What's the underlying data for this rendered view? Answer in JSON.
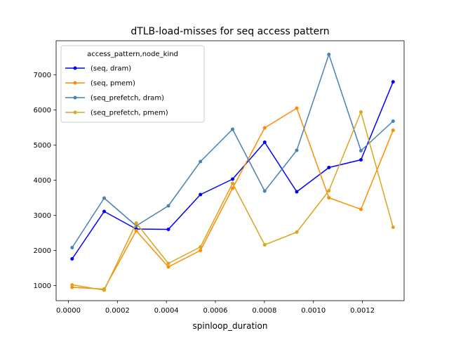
{
  "chart_data": {
    "type": "line",
    "title": "dTLB-load-misses for seq access pattern",
    "xlabel": "spinloop_duration",
    "ylabel": "",
    "xlim": [
      -5e-05,
      0.00137
    ],
    "ylim": [
      570,
      7970
    ],
    "xticks": [
      0.0,
      0.0002,
      0.0004,
      0.0006,
      0.0008,
      0.001,
      0.0012
    ],
    "xtick_labels": [
      "0.0000",
      "0.0002",
      "0.0004",
      "0.0006",
      "0.0008",
      "0.0010",
      "0.0012"
    ],
    "yticks": [
      1000,
      2000,
      3000,
      4000,
      5000,
      6000,
      7000
    ],
    "ytick_labels": [
      "1000",
      "2000",
      "3000",
      "4000",
      "5000",
      "6000",
      "7000"
    ],
    "x": [
      1.52e-05,
      0.000146,
      0.000277,
      0.000408,
      0.000539,
      0.00067,
      0.000801,
      0.000932,
      0.001063,
      0.001194,
      0.001325
    ],
    "grid": false,
    "legend": {
      "title": "access_pattern,node_kind",
      "placement": "top-left"
    },
    "series": [
      {
        "name": "(seq, dram)",
        "color": "#0000ff",
        "values": [
          1760,
          3110,
          2610,
          2600,
          3590,
          4030,
          5080,
          3670,
          4360,
          4580,
          6800
        ]
      },
      {
        "name": "(seq, pmem)",
        "color": "#ff8c00",
        "values": [
          950,
          900,
          2560,
          1530,
          2000,
          3770,
          5490,
          6050,
          3500,
          3170,
          5420
        ]
      },
      {
        "name": "(seq_prefetch, dram)",
        "color": "#4682b4",
        "values": [
          2080,
          3490,
          2700,
          3270,
          4530,
          5450,
          3690,
          4850,
          7580,
          4840,
          5680
        ]
      },
      {
        "name": "(seq_prefetch, pmem)",
        "color": "#daa520",
        "values": [
          1020,
          870,
          2780,
          1630,
          2100,
          3910,
          2160,
          2520,
          3700,
          5940,
          2660
        ]
      }
    ]
  }
}
